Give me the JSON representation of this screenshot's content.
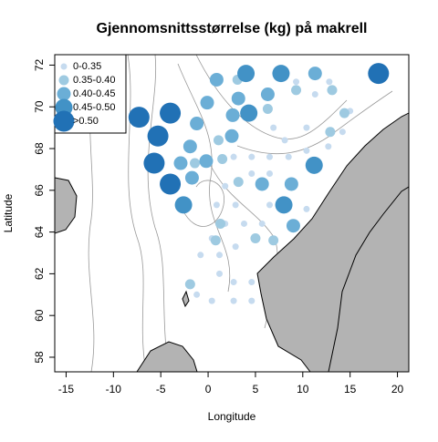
{
  "chart_data": {
    "type": "scatter",
    "title": "Gjennomsnittsstørrelse (kg) på makrell",
    "xlabel": "Longitude",
    "ylabel": "Latitude",
    "xlim": [
      -16.2,
      21.2
    ],
    "ylim": [
      57.3,
      72.5
    ],
    "xticks": [
      -15,
      -10,
      -5,
      0,
      5,
      10,
      15,
      20
    ],
    "yticks": [
      58,
      60,
      62,
      64,
      66,
      68,
      70,
      72
    ],
    "legend": "top-left",
    "series": [
      {
        "name": "0-0.35",
        "color": "#c6dbef",
        "x": [
          9.3,
          12.8,
          11.3,
          6.9,
          10.4,
          2.7,
          4.6,
          6.5,
          8.5,
          10.4,
          12.7,
          4.6,
          6.5,
          6.5,
          10.4,
          0.9,
          1.8,
          2.9,
          1.8,
          3.8,
          5.7,
          0.4,
          2.9,
          -0.8,
          1.2,
          1.2,
          2.7,
          4.6,
          2.7,
          4.6,
          0.4,
          -1.2,
          14.2,
          15.0,
          8.1
        ],
        "y": [
          71.2,
          71.2,
          70.6,
          69.0,
          69.0,
          67.6,
          67.6,
          67.6,
          67.6,
          67.9,
          68.1,
          66.8,
          66.8,
          65.3,
          65.1,
          65.3,
          66.2,
          65.3,
          64.4,
          64.4,
          64.4,
          63.7,
          63.3,
          62.9,
          62.9,
          62.0,
          61.6,
          61.6,
          60.7,
          60.7,
          60.7,
          61.0,
          68.8,
          69.8,
          68.4
        ]
      },
      {
        "name": "0.35-0.40",
        "color": "#9ecae1",
        "x": [
          3.1,
          6.3,
          9.3,
          13.1,
          1.1,
          3.2,
          1.3,
          5.0,
          0.8,
          6.9,
          1.5,
          -1.4,
          -1.9,
          14.4,
          12.9
        ],
        "y": [
          71.3,
          69.9,
          70.8,
          70.8,
          68.4,
          66.4,
          64.4,
          63.7,
          63.6,
          63.6,
          67.5,
          67.3,
          61.5,
          69.7,
          68.8
        ]
      },
      {
        "name": "0.40-0.45",
        "color": "#6baed6",
        "x": [
          0.9,
          -1.9,
          -0.1,
          2.6,
          2.5,
          -1.2,
          -2.9,
          5.7,
          11.3,
          3.2,
          6.3,
          -0.2,
          8.8,
          9.0,
          -1.7
        ],
        "y": [
          71.3,
          68.1,
          70.2,
          69.6,
          68.6,
          69.2,
          67.3,
          66.3,
          71.6,
          70.4,
          70.6,
          67.4,
          66.3,
          64.3,
          66.6
        ]
      },
      {
        "name": "0.45-0.50",
        "color": "#4292c6",
        "x": [
          4.0,
          7.7,
          8.0,
          11.2,
          4.3,
          -2.6
        ],
        "y": [
          71.6,
          71.6,
          65.3,
          67.2,
          69.7,
          65.3
        ]
      },
      {
        "name": ">0.50",
        "color": "#2171b5",
        "x": [
          -7.3,
          -4.0,
          -5.3,
          -5.7,
          -4.0,
          18.0
        ],
        "y": [
          69.5,
          69.7,
          68.6,
          67.3,
          66.3,
          71.6
        ]
      }
    ]
  }
}
